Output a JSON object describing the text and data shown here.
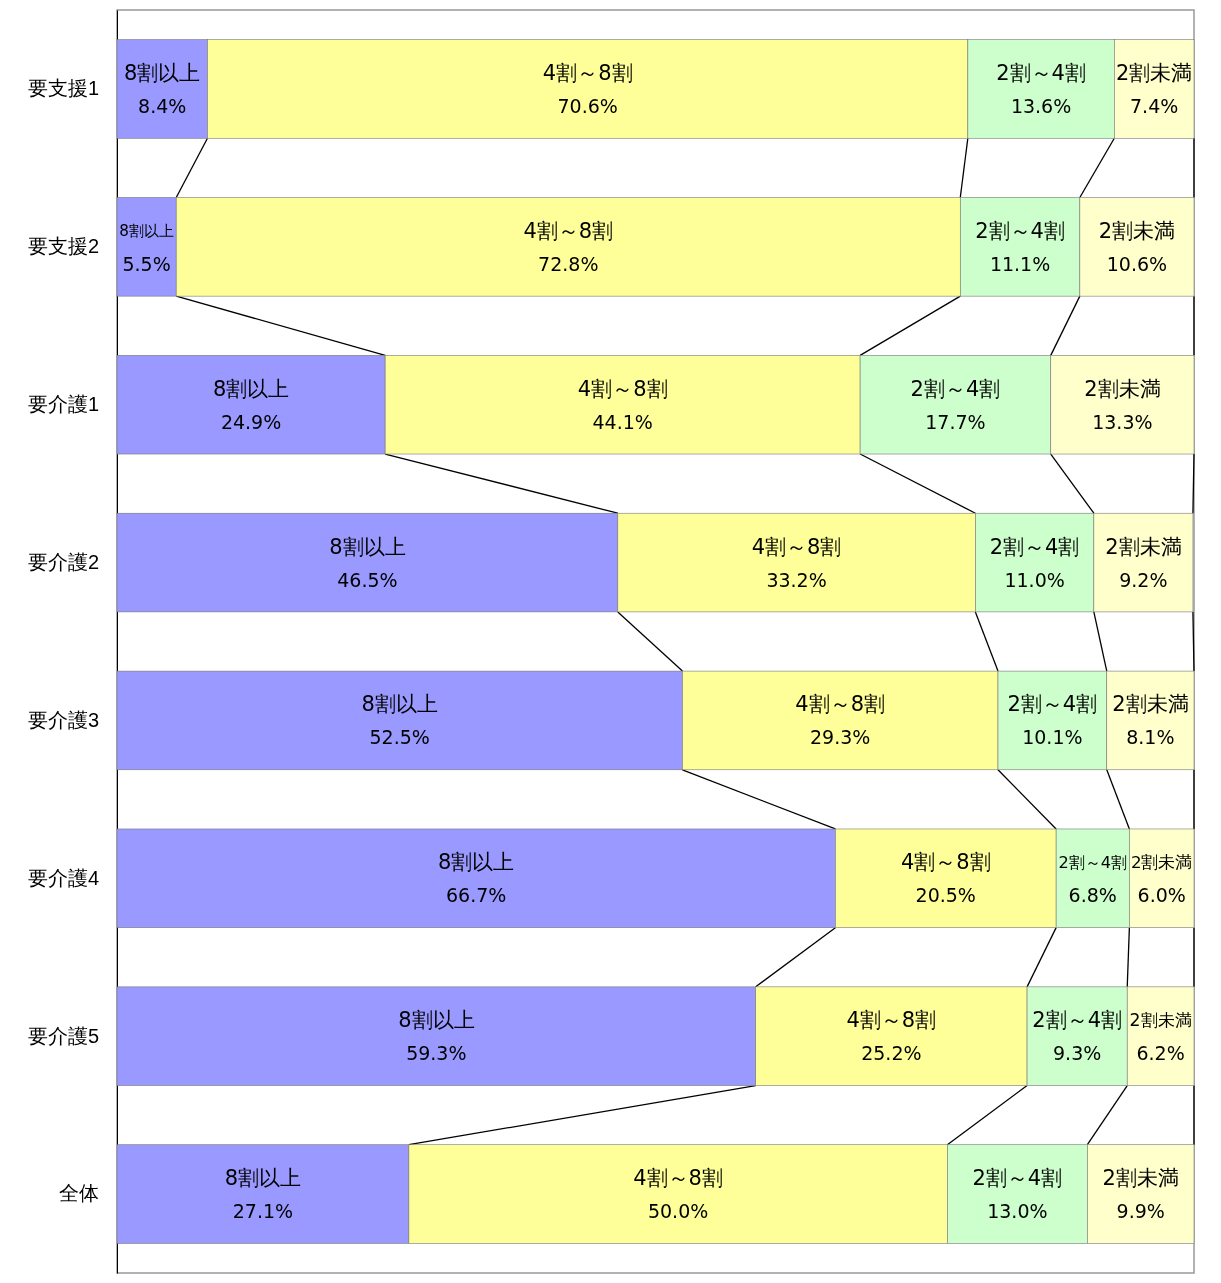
{
  "chart_data": {
    "type": "bar",
    "orientation": "horizontal",
    "stacked": true,
    "tick_labels": "y",
    "xlim": [
      0,
      100
    ],
    "categories": [
      "要支援1",
      "要支援2",
      "要介護1",
      "要介護2",
      "要介護3",
      "要介護4",
      "要介護5",
      "全体"
    ],
    "series": [
      {
        "name": "8割以上",
        "color": "#9999ff",
        "values": [
          8.4,
          5.5,
          24.9,
          46.5,
          52.5,
          66.7,
          59.3,
          27.1
        ],
        "value_labels": [
          "8.4%",
          "5.5%",
          "24.9%",
          "46.5%",
          "52.5%",
          "66.7%",
          "59.3%",
          "27.1%"
        ]
      },
      {
        "name": "4割～8割",
        "color": "#ffff99",
        "values": [
          70.6,
          72.8,
          44.1,
          33.2,
          29.3,
          20.5,
          25.2,
          50.0
        ],
        "value_labels": [
          "70.6%",
          "72.8%",
          "44.1%",
          "33.2%",
          "29.3%",
          "20.5%",
          "25.2%",
          "50.0%"
        ]
      },
      {
        "name": "2割～4割",
        "color": "#ccffcc",
        "values": [
          13.6,
          11.1,
          17.7,
          11.0,
          10.1,
          6.8,
          9.3,
          13.0
        ],
        "value_labels": [
          "13.6%",
          "11.1%",
          "17.7%",
          "11.0%",
          "10.1%",
          "6.8%",
          "9.3%",
          "13.0%"
        ]
      },
      {
        "name": "2割未満",
        "color": "#ffffcc",
        "values": [
          7.4,
          10.6,
          13.3,
          9.2,
          8.1,
          6.0,
          6.2,
          9.9
        ],
        "value_labels": [
          "7.4%",
          "10.6%",
          "13.3%",
          "9.2%",
          "8.1%",
          "6.0%",
          "6.2%",
          "9.9%"
        ]
      }
    ]
  }
}
